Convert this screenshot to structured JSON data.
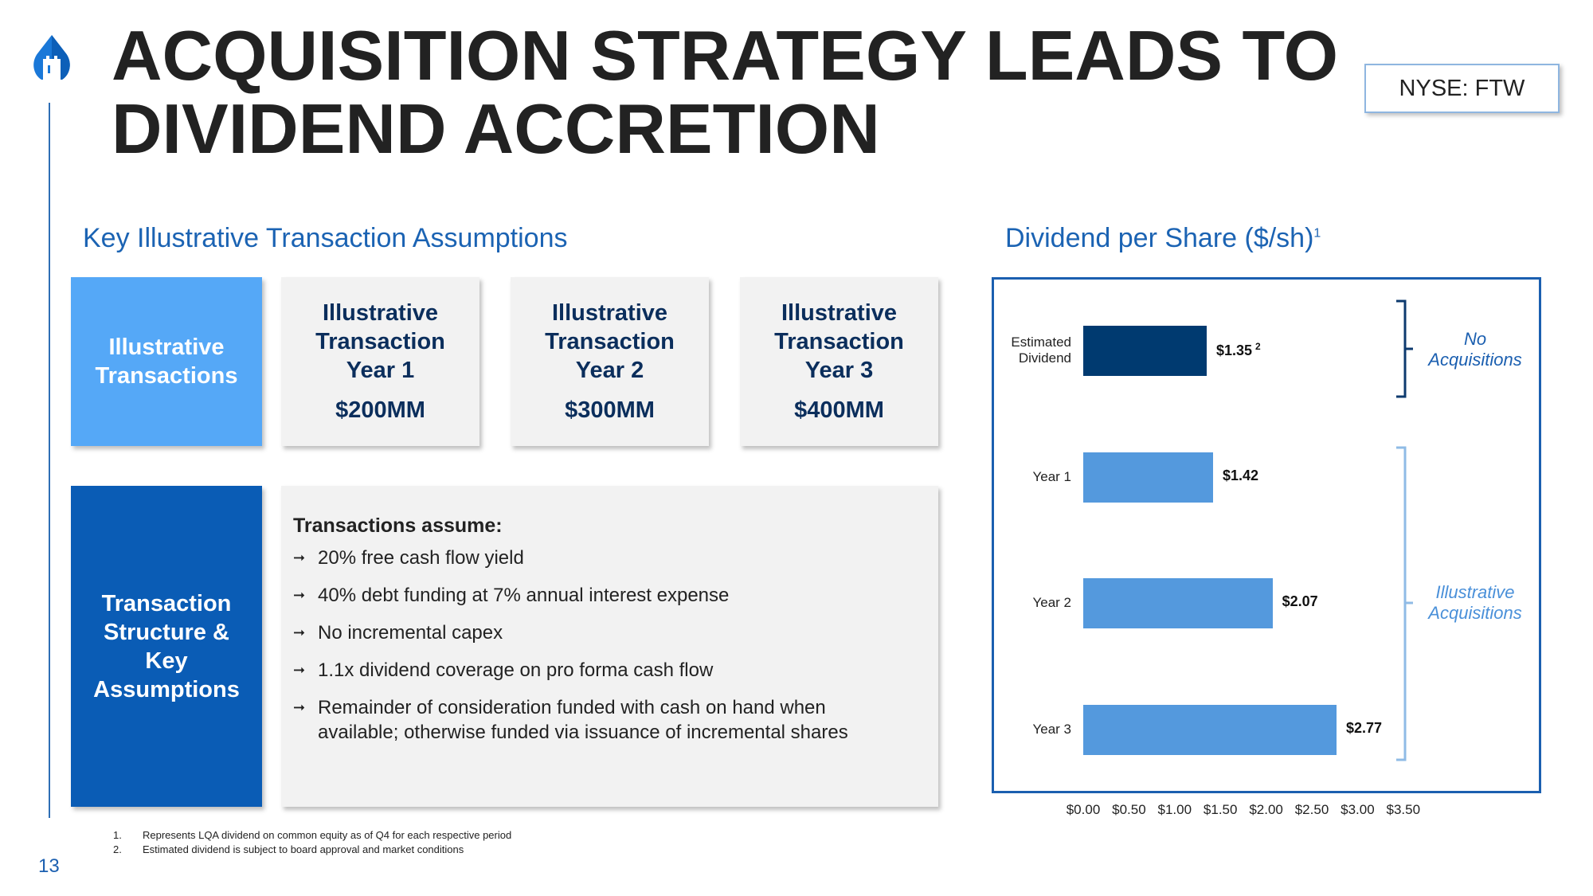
{
  "header": {
    "title_line1": "ACQUISITION STRATEGY LEADS TO",
    "title_line2": "DIVIDEND ACCRETION",
    "ticker": "NYSE: FTW"
  },
  "left": {
    "subtitle": "Key Illustrative Transaction Assumptions",
    "label_box": "Illustrative Transactions",
    "transactions": [
      {
        "line1": "Illustrative",
        "line2": "Transaction",
        "line3": "Year 1",
        "amount": "$200MM"
      },
      {
        "line1": "Illustrative",
        "line2": "Transaction",
        "line3": "Year 2",
        "amount": "$300MM"
      },
      {
        "line1": "Illustrative",
        "line2": "Transaction",
        "line3": "Year 3",
        "amount": "$400MM"
      }
    ],
    "structure_box": "Transaction Structure & Key Assumptions",
    "assume_title": "Transactions assume:",
    "bullets": [
      "20% free cash flow yield",
      "40% debt funding at 7% annual interest expense",
      "No incremental capex",
      "1.1x dividend coverage on pro forma cash flow",
      "Remainder of consideration funded with cash on hand when available; otherwise funded via issuance of incremental shares"
    ]
  },
  "right": {
    "subtitle": "Dividend per Share ($/sh)",
    "subtitle_sup": "1"
  },
  "chart_data": {
    "type": "bar",
    "orientation": "horizontal",
    "title": "Dividend per Share ($/sh)",
    "categories": [
      "Estimated Dividend",
      "Year 1",
      "Year 2",
      "Year 3"
    ],
    "values": [
      1.35,
      1.42,
      2.07,
      2.77
    ],
    "value_labels": [
      "$1.35",
      "$1.42",
      "$2.07",
      "$2.77"
    ],
    "value_label_sups": [
      "2",
      "",
      "",
      ""
    ],
    "colors": [
      "#003a70",
      "#5499dd",
      "#5499dd",
      "#5499dd"
    ],
    "xlim": [
      0,
      3.5
    ],
    "xticks": [
      "$0.00",
      "$0.50",
      "$1.00",
      "$1.50",
      "$2.00",
      "$2.50",
      "$3.00",
      "$3.50"
    ],
    "groups": [
      {
        "label_line1": "No",
        "label_line2": "Acquisitions",
        "color": "#0d3a6e"
      },
      {
        "label_line1": "Illustrative",
        "label_line2": "Acquisitions",
        "color": "#8fbbe6"
      }
    ]
  },
  "footnotes": [
    {
      "num": "1.",
      "text": "Represents LQA dividend on common equity as of Q4 for each respective period"
    },
    {
      "num": "2.",
      "text": "Estimated dividend is subject to board approval and market conditions"
    }
  ],
  "page_number": "13"
}
